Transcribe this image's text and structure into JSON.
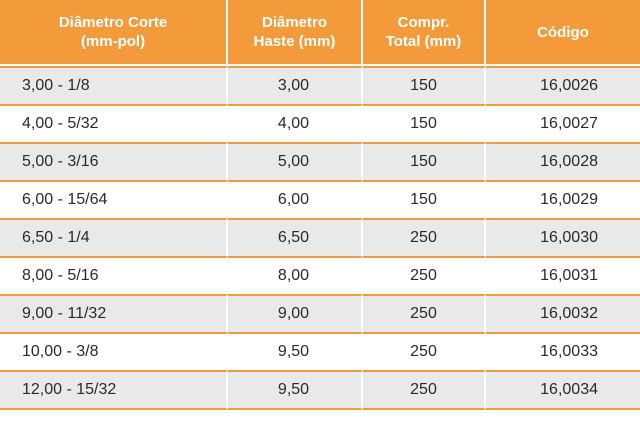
{
  "table": {
    "headers": [
      [
        "Diâmetro Corte",
        "(mm-pol)"
      ],
      [
        "Diâmetro",
        "Haste (mm)"
      ],
      [
        "Compr.",
        "Total (mm)"
      ],
      [
        "Código"
      ]
    ],
    "rows": [
      [
        "3,00 - 1/8",
        "3,00",
        "150",
        "16,0026"
      ],
      [
        "4,00 - 5/32",
        "4,00",
        "150",
        "16,0027"
      ],
      [
        "5,00 - 3/16",
        "5,00",
        "150",
        "16,0028"
      ],
      [
        "6,00 - 15/64",
        "6,00",
        "150",
        "16,0029"
      ],
      [
        "6,50 - 1/4",
        "6,50",
        "250",
        "16,0030"
      ],
      [
        "8,00 - 5/16",
        "8,00",
        "250",
        "16,0031"
      ],
      [
        "9,00 - 11/32",
        "9,00",
        "250",
        "16,0032"
      ],
      [
        "10,00 - 3/8",
        "9,50",
        "250",
        "16,0033"
      ],
      [
        "12,00 - 15/32",
        "9,50",
        "250",
        "16,0034"
      ]
    ]
  },
  "colors": {
    "header_background": "#f39a3a",
    "header_text": "#ffffff",
    "row_stripe": "#e9e9e9",
    "row_rule": "#f39a3a"
  }
}
